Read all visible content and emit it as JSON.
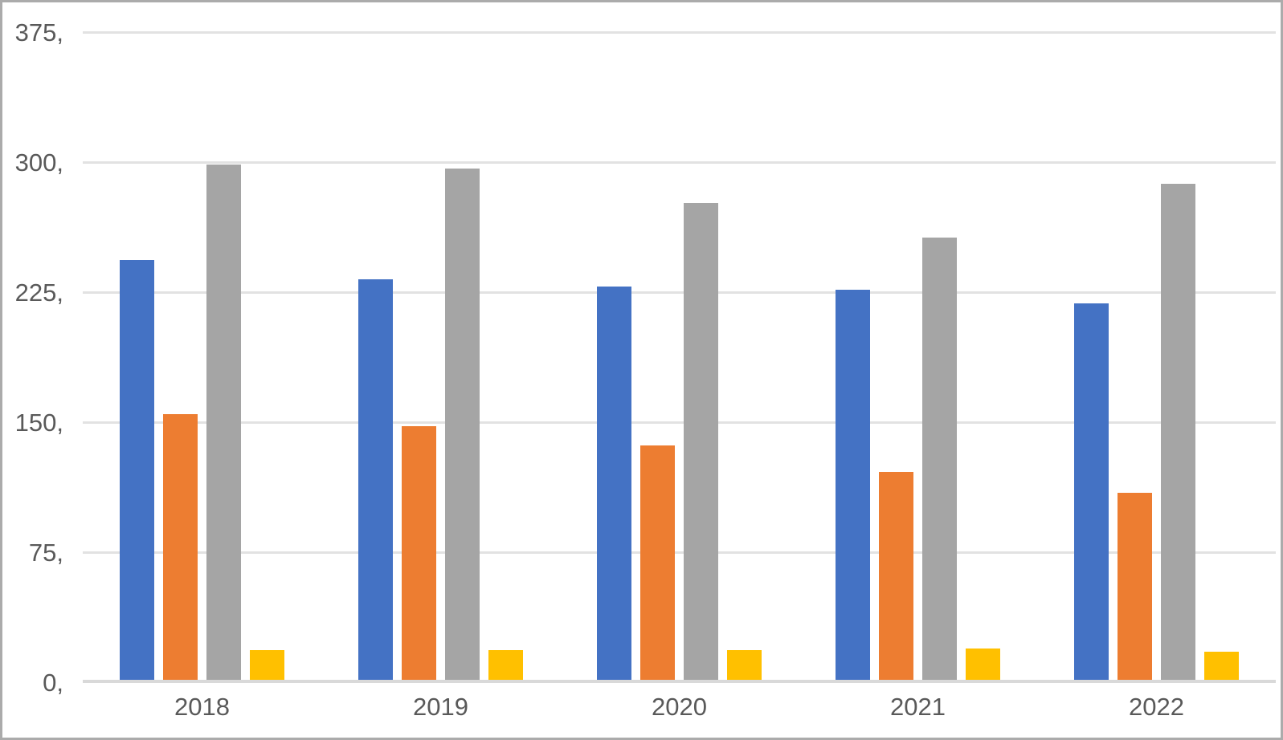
{
  "chart_data": {
    "type": "bar",
    "title": "",
    "xlabel": "",
    "ylabel": "",
    "categories": [
      "2018",
      "2019",
      "2020",
      "2021",
      "2022"
    ],
    "series": [
      {
        "name": "blue",
        "color": "#4472C4",
        "values": [
          243,
          232,
          228,
          226,
          218
        ]
      },
      {
        "name": "orange",
        "color": "#ED7D31",
        "values": [
          154,
          147,
          136,
          121,
          109
        ]
      },
      {
        "name": "gray",
        "color": "#A5A5A5",
        "values": [
          298,
          296,
          276,
          256,
          287
        ]
      },
      {
        "name": "yellow",
        "color": "#FFC000",
        "values": [
          18,
          18,
          18,
          19,
          17
        ]
      }
    ],
    "y_ticks": [
      {
        "value": 0,
        "label": "0,"
      },
      {
        "value": 75,
        "label": "75,"
      },
      {
        "value": 150,
        "label": "150,"
      },
      {
        "value": 225,
        "label": "225,"
      },
      {
        "value": 300,
        "label": "300,"
      },
      {
        "value": 375,
        "label": "375,"
      }
    ],
    "ylim": [
      0,
      375
    ],
    "grid": true,
    "legend": "none"
  },
  "colors": {
    "grid_line": "#E2E2E2",
    "axis_line": "#D9D9D9",
    "tick_text": "#595959",
    "frame_border": "#ABABAB",
    "background": "#FFFFFF"
  }
}
